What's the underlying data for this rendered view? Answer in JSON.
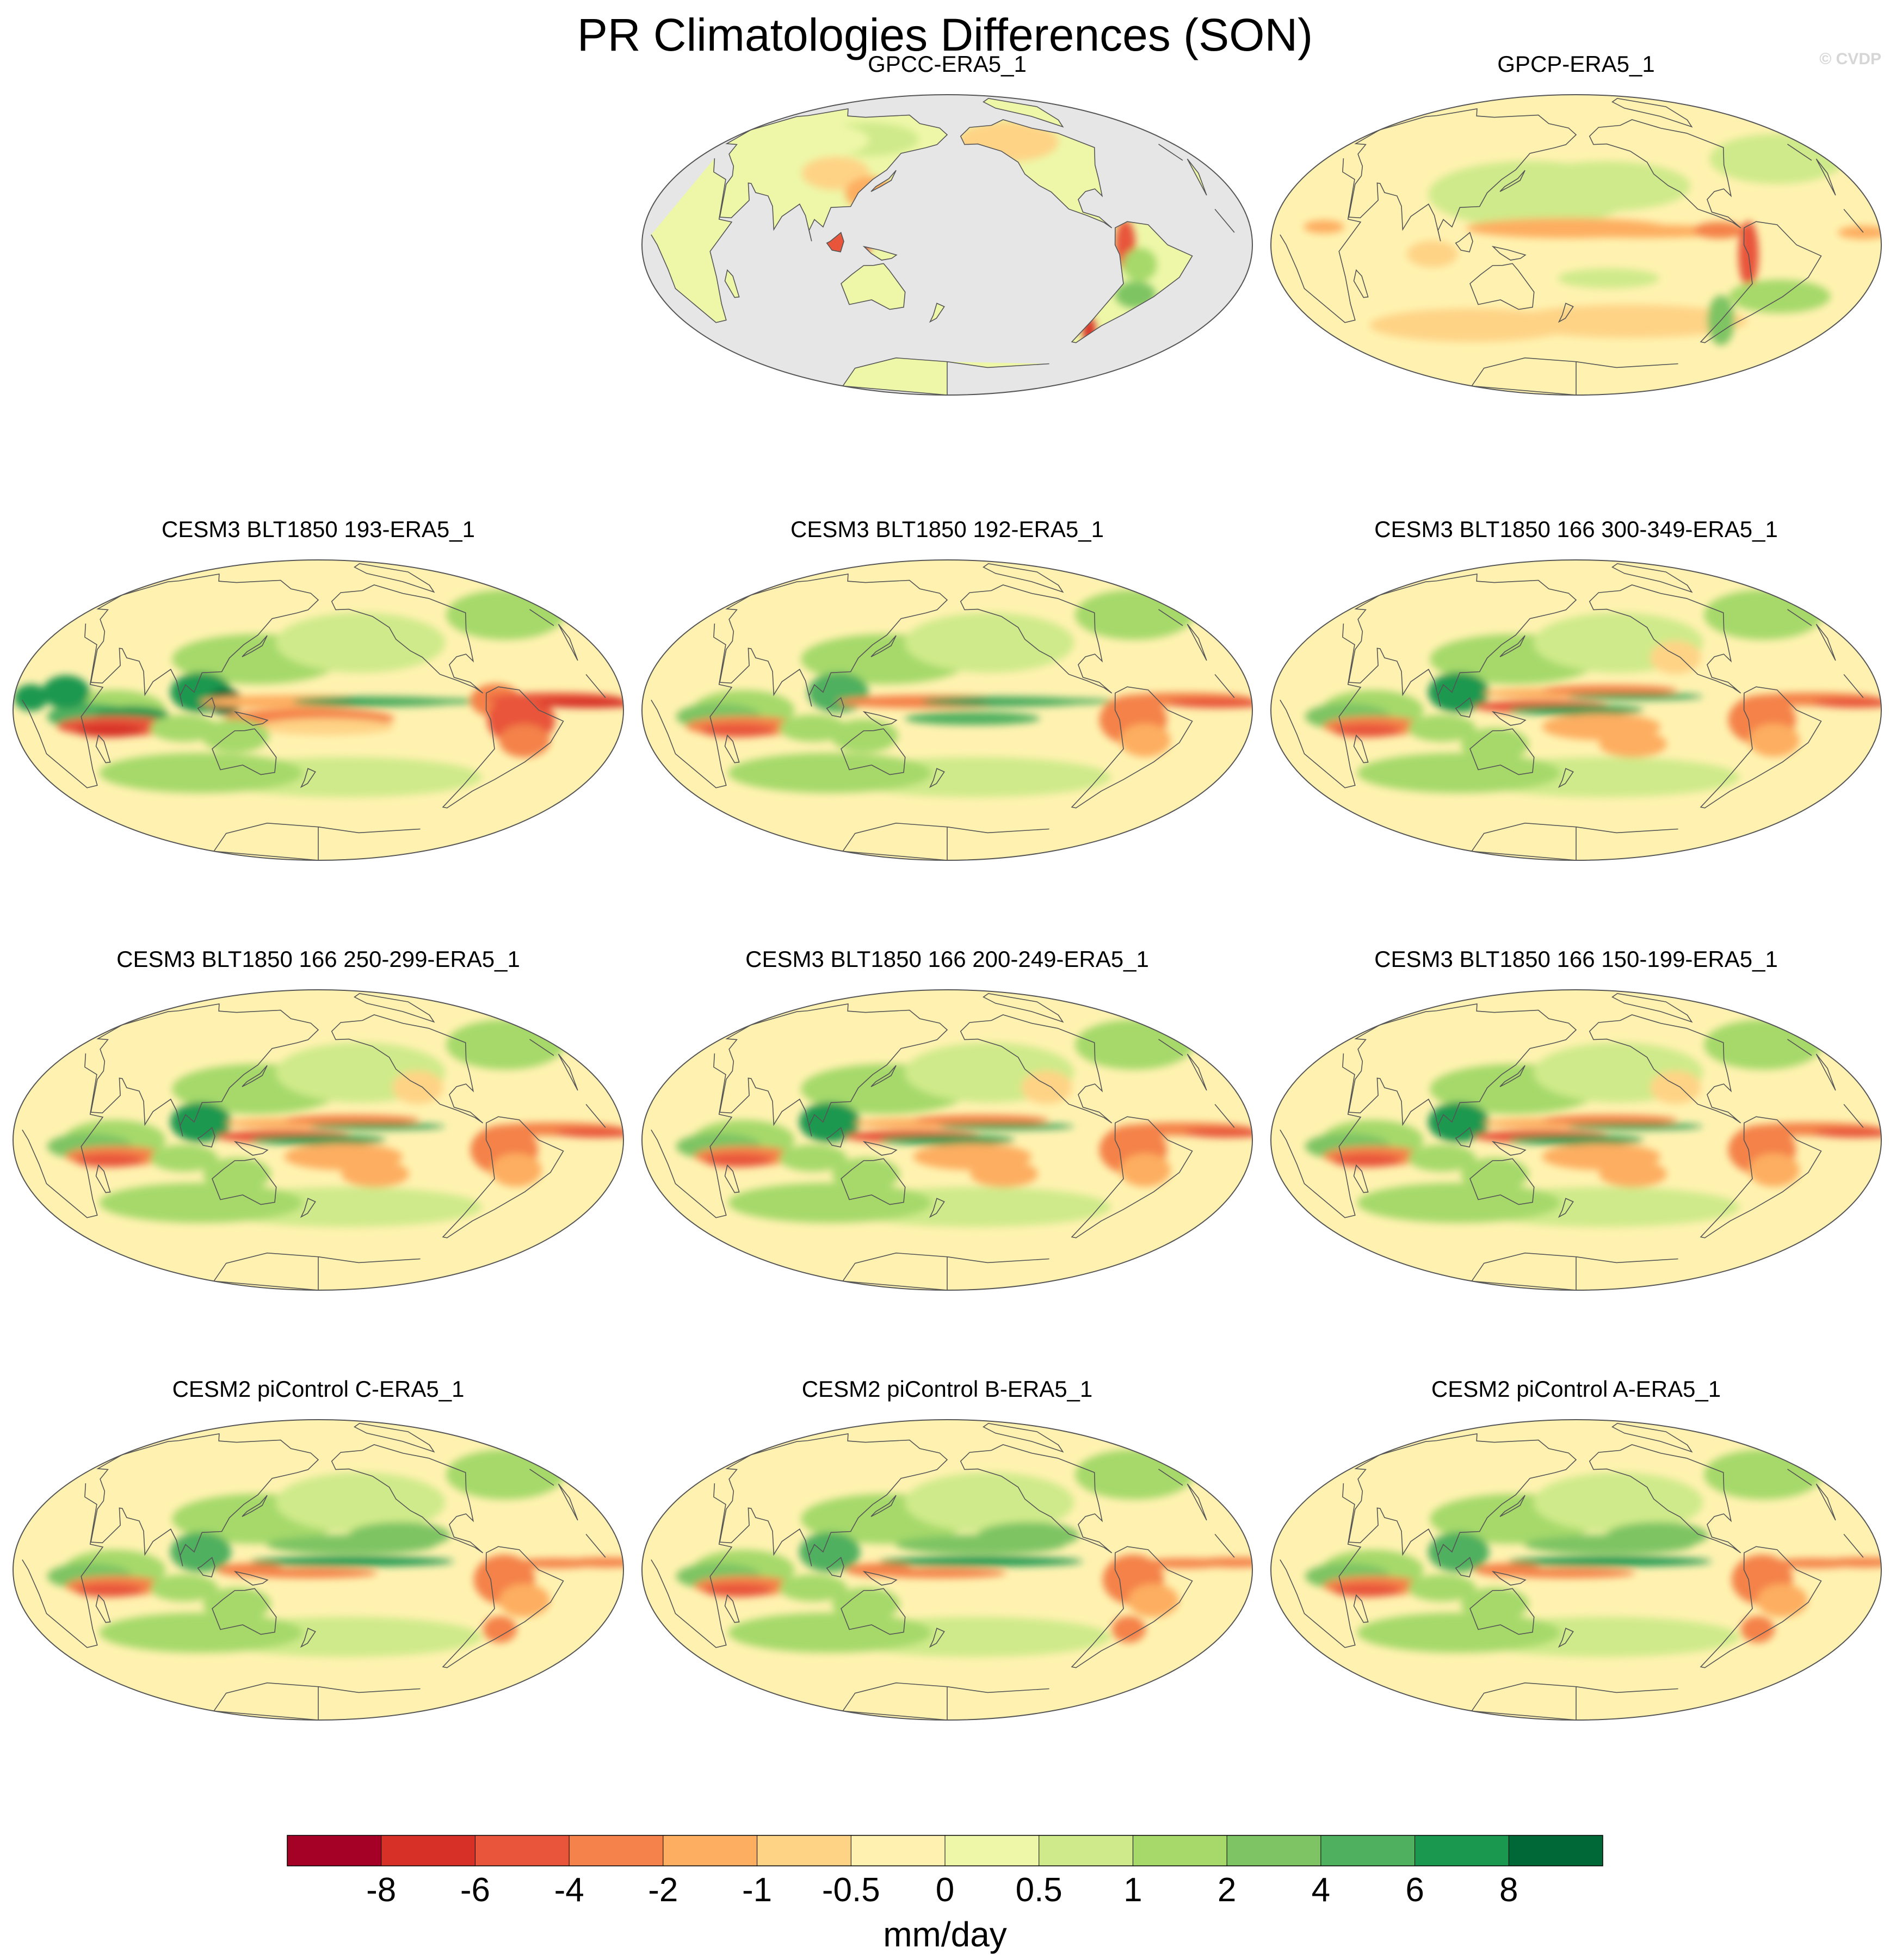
{
  "title": "PR Climatologies Differences (SON)",
  "watermark": "© CVDP",
  "colorbar": {
    "units": "mm/day",
    "ticks": [
      "-8",
      "-6",
      "-4",
      "-2",
      "-1",
      "-0.5",
      "0",
      "0.5",
      "1",
      "2",
      "4",
      "6",
      "8"
    ],
    "colors": [
      "#a50026",
      "#d73027",
      "#e8553b",
      "#f4824a",
      "#fdae61",
      "#fed386",
      "#fff2b0",
      "#eef7a8",
      "#cfea8a",
      "#a6d96a",
      "#7ec464",
      "#4fb05f",
      "#1a9850",
      "#006837"
    ]
  },
  "chart_data": [
    {
      "type": "heatmap",
      "title": "GPCC-ERA5_1",
      "pattern": "gpcc",
      "land_only": true
    },
    {
      "type": "heatmap",
      "title": "GPCP-ERA5_1",
      "pattern": "gpcp"
    },
    {
      "type": "heatmap",
      "title": "CESM3 BLT1850 193-ERA5_1",
      "pattern": "blt193"
    },
    {
      "type": "heatmap",
      "title": "CESM3 BLT1850 192-ERA5_1",
      "pattern": "blt192"
    },
    {
      "type": "heatmap",
      "title": "CESM3 BLT1850 166 300-349-ERA5_1",
      "pattern": "blt166"
    },
    {
      "type": "heatmap",
      "title": "CESM3 BLT1850 166 250-299-ERA5_1",
      "pattern": "blt166"
    },
    {
      "type": "heatmap",
      "title": "CESM3 BLT1850 166 200-249-ERA5_1",
      "pattern": "blt166"
    },
    {
      "type": "heatmap",
      "title": "CESM3 BLT1850 166 150-199-ERA5_1",
      "pattern": "blt166"
    },
    {
      "type": "heatmap",
      "title": "CESM2 piControl C-ERA5_1",
      "pattern": "cesm2"
    },
    {
      "type": "heatmap",
      "title": "CESM2 piControl B-ERA5_1",
      "pattern": "cesm2"
    },
    {
      "type": "heatmap",
      "title": "CESM2 piControl A-ERA5_1",
      "pattern": "cesm2"
    }
  ]
}
